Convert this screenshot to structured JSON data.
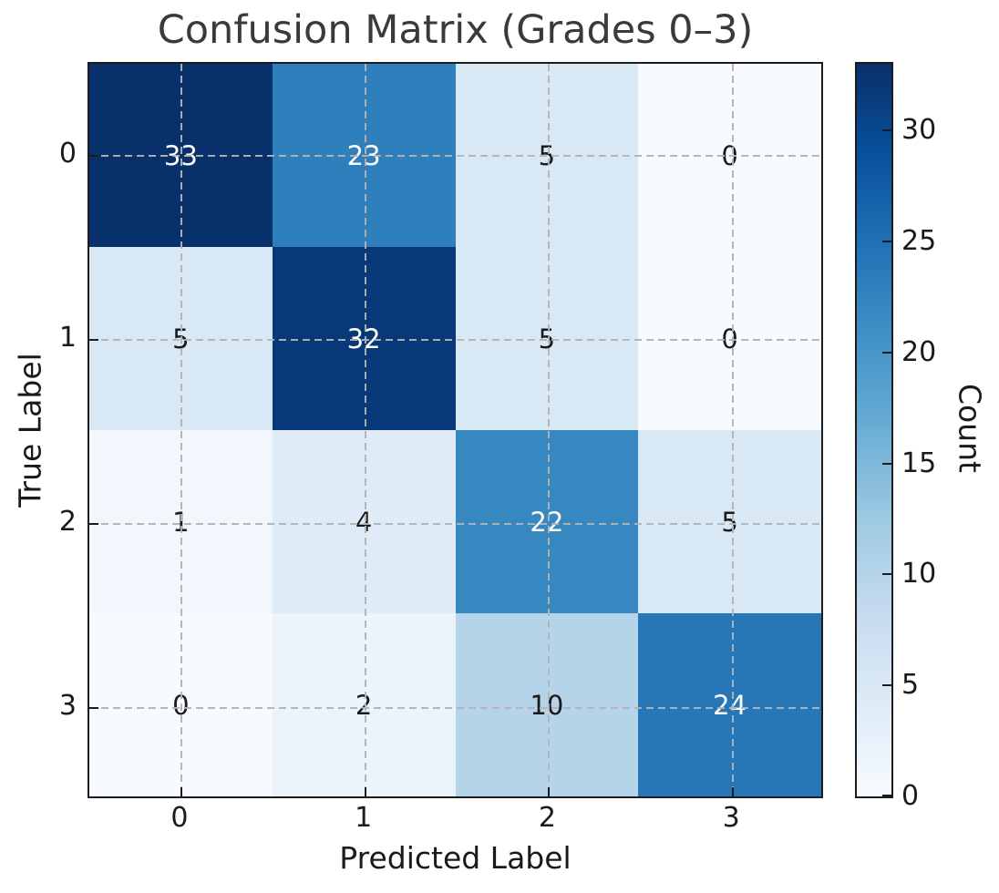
{
  "chart_data": {
    "type": "heatmap",
    "title": "Confusion Matrix (Grades 0–3)",
    "xlabel": "Predicted Label",
    "ylabel": "True Label",
    "x_tick_labels": [
      "0",
      "1",
      "2",
      "3"
    ],
    "y_tick_labels": [
      "0",
      "1",
      "2",
      "3"
    ],
    "matrix": [
      [
        33,
        23,
        5,
        0
      ],
      [
        5,
        32,
        5,
        0
      ],
      [
        1,
        4,
        22,
        5
      ],
      [
        0,
        2,
        10,
        24
      ]
    ],
    "vmin": 0,
    "vmax": 33,
    "colormap": {
      "name": "Blues",
      "anchors": [
        "#f7fbff",
        "#deebf7",
        "#c6dbef",
        "#9ecae1",
        "#6baed6",
        "#4292c6",
        "#2171b5",
        "#08519c",
        "#08306b"
      ]
    },
    "colorbar": {
      "label": "Count",
      "ticks": [
        0,
        5,
        10,
        15,
        20,
        25,
        30
      ]
    },
    "grid": "dashed",
    "annotation_text_colors": {
      "on_dark": "#ffffff",
      "on_light": "#1a1a1a"
    }
  },
  "styles": {
    "title_color": "#3a3a3a",
    "tick_label_color": "#1a1a1a",
    "grid_color": "#b3b3b3",
    "spine_color": "#1c1c1c",
    "background": "#ffffff"
  }
}
